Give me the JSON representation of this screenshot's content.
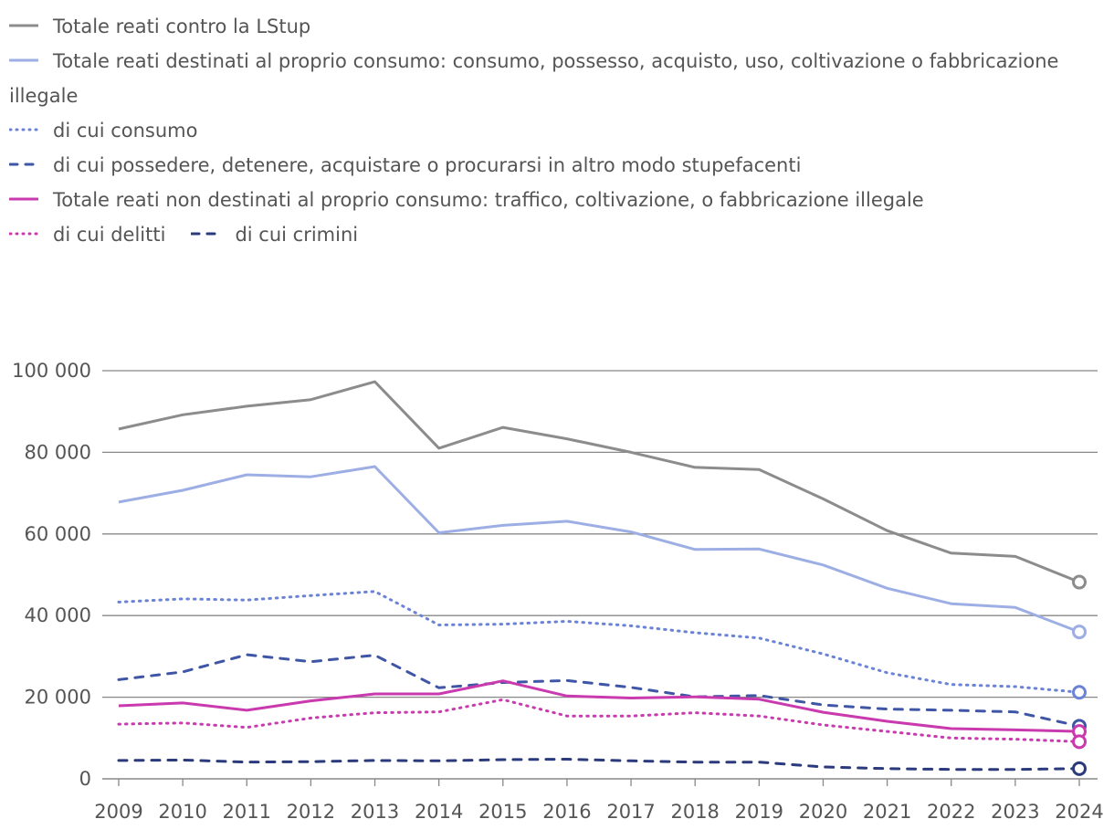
{
  "chart_data": {
    "type": "line",
    "title": "",
    "xlabel": "",
    "ylabel": "",
    "ylim": [
      0,
      100000
    ],
    "y_ticks": [
      0,
      20000,
      40000,
      60000,
      80000,
      100000
    ],
    "y_tick_labels": [
      "0",
      "20 000",
      "40 000",
      "60 000",
      "80 000",
      "100 000"
    ],
    "grid": true,
    "legend_position": "top-left",
    "x": [
      "2009",
      "2010",
      "2011",
      "2012",
      "2013",
      "2014",
      "2015",
      "2016",
      "2017",
      "2018",
      "2019",
      "2020",
      "2021",
      "2022",
      "2023",
      "2024"
    ],
    "series": [
      {
        "name": "Totale reati contro la LStup",
        "color": "#8c8c8c",
        "style": "solid",
        "values": [
          85700,
          89200,
          91300,
          92900,
          97300,
          81000,
          86100,
          83300,
          80000,
          76300,
          75800,
          68600,
          60800,
          55300,
          54500,
          48200
        ]
      },
      {
        "name": "Totale reati destinati al proprio consumo: consumo, possesso, acquisto, uso, coltivazione o fabbricazione illegale",
        "color": "#9daee4",
        "style": "solid",
        "values": [
          67800,
          70700,
          74500,
          74000,
          76500,
          60300,
          62100,
          63100,
          60500,
          56200,
          56300,
          52400,
          46700,
          42900,
          42000,
          36000
        ]
      },
      {
        "name": "di cui consumo",
        "color": "#6b83d6",
        "style": "dotted",
        "values": [
          43300,
          44100,
          43800,
          44900,
          45900,
          37700,
          37900,
          38600,
          37500,
          35800,
          34500,
          30600,
          26000,
          23100,
          22600,
          21200
        ]
      },
      {
        "name": "di cui possedere, detenere, acquistare o procurarsi in altro modo stupefacenti",
        "color": "#3f55a5",
        "style": "dashed",
        "values": [
          24300,
          26200,
          30400,
          28700,
          30300,
          22300,
          23600,
          24100,
          22400,
          20100,
          20400,
          18100,
          17100,
          16800,
          16400,
          12900
        ]
      },
      {
        "name": "Totale reati non destinati al proprio consumo: traffico, coltivazione, o fabbricazione illegale",
        "color": "#c93aae",
        "style": "solid",
        "values": [
          17900,
          18600,
          16800,
          19100,
          20800,
          20800,
          24000,
          20300,
          19800,
          20100,
          19500,
          16300,
          14100,
          12300,
          12000,
          11600
        ]
      },
      {
        "name": "di cui delitti",
        "color": "#c93aae",
        "style": "dotted",
        "values": [
          13400,
          13700,
          12600,
          14900,
          16200,
          16400,
          19400,
          15400,
          15400,
          16200,
          15400,
          13200,
          11600,
          10000,
          9700,
          9100
        ]
      },
      {
        "name": "di cui crimini",
        "color": "#2a3a7c",
        "style": "dashed",
        "values": [
          4500,
          4600,
          4100,
          4200,
          4500,
          4400,
          4700,
          4800,
          4400,
          4100,
          4100,
          2900,
          2500,
          2300,
          2300,
          2500
        ]
      }
    ]
  },
  "legend_rows": [
    [
      0
    ],
    [
      1
    ],
    [
      2
    ],
    [
      3
    ],
    [
      4
    ],
    [
      5,
      6
    ]
  ],
  "colors": {
    "gridline": "#888888",
    "axis": "#888888",
    "text": "#555555",
    "background": "#ffffff"
  }
}
